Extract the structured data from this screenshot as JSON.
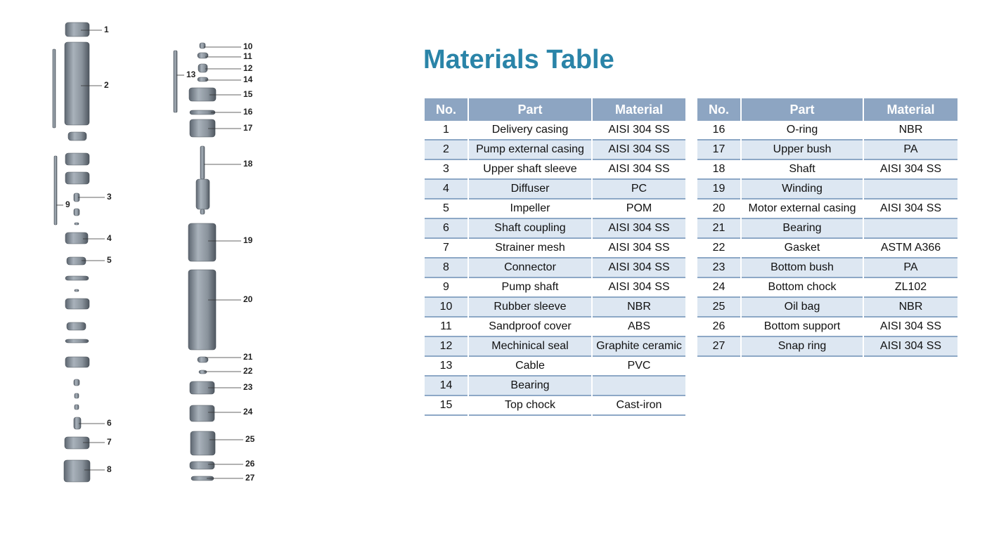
{
  "title": "Materials Table",
  "diagram": {
    "callouts": [
      "1",
      "2",
      "3",
      "4",
      "5",
      "6",
      "7",
      "8",
      "9",
      "10",
      "11",
      "12",
      "13",
      "14",
      "15",
      "16",
      "17",
      "18",
      "19",
      "20",
      "21",
      "22",
      "23",
      "24",
      "25",
      "26",
      "27"
    ]
  },
  "tables": [
    {
      "header": [
        "No.",
        "Part",
        "Material"
      ],
      "rows": [
        [
          1,
          "Delivery casing",
          "AISI 304 SS"
        ],
        [
          2,
          "Pump external casing",
          "AISI 304 SS"
        ],
        [
          3,
          "Upper shaft sleeve",
          "AISI 304 SS"
        ],
        [
          4,
          "Diffuser",
          "PC"
        ],
        [
          5,
          "Impeller",
          "POM"
        ],
        [
          6,
          "Shaft coupling",
          "AISI 304 SS"
        ],
        [
          7,
          "Strainer mesh",
          "AISI 304 SS"
        ],
        [
          8,
          "Connector",
          "AISI 304 SS"
        ],
        [
          9,
          "Pump shaft",
          "AISI 304 SS"
        ],
        [
          10,
          "Rubber sleeve",
          "NBR"
        ],
        [
          11,
          "Sandproof cover",
          "ABS"
        ],
        [
          12,
          "Mechinical seal",
          "Graphite ceramic"
        ],
        [
          13,
          "Cable",
          "PVC"
        ],
        [
          14,
          "Bearing"
        ],
        [
          15,
          "Top chock",
          "Cast-iron"
        ]
      ]
    },
    {
      "header": [
        "No.",
        "Part",
        "Material"
      ],
      "rows": [
        [
          16,
          "O-ring",
          "NBR"
        ],
        [
          17,
          "Upper bush",
          "PA"
        ],
        [
          18,
          "Shaft",
          "AISI 304 SS"
        ],
        [
          19,
          "Winding"
        ],
        [
          20,
          "Motor external casing",
          "AISI 304 SS"
        ],
        [
          21,
          "Bearing"
        ],
        [
          22,
          "Gasket",
          "ASTM A366"
        ],
        [
          23,
          "Bottom bush",
          "PA"
        ],
        [
          24,
          "Bottom chock",
          "ZL102"
        ],
        [
          25,
          "Oil bag",
          "NBR"
        ],
        [
          26,
          "Bottom support",
          "AISI 304 SS"
        ],
        [
          27,
          "Snap ring",
          "AISI 304 SS"
        ]
      ]
    }
  ]
}
